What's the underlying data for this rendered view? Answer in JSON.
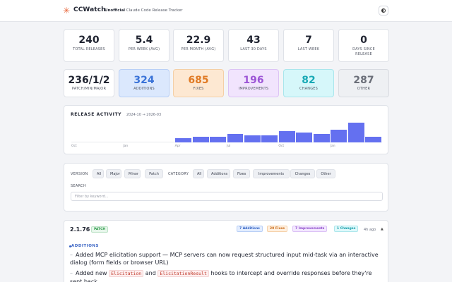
{
  "header": {
    "brand": "CCWatch",
    "subtitle_bold": "Unofficial",
    "subtitle": "Claude Code Release Tracker"
  },
  "stats_row1": [
    {
      "value": "240",
      "label": "TOTAL RELEASES"
    },
    {
      "value": "5.4",
      "label": "PER WEEK (AVG)"
    },
    {
      "value": "22.9",
      "label": "PER MONTH (AVG)"
    },
    {
      "value": "43",
      "label": "LAST 30 DAYS"
    },
    {
      "value": "7",
      "label": "LAST WEEK"
    },
    {
      "value": "0",
      "label": "DAYS SINCE RELEASE"
    }
  ],
  "stats_row2": [
    {
      "value": "236/1/2",
      "label": "PATCH/MIN/MAJOR",
      "color": "#1f2330",
      "bg": "#ffffff",
      "border": "#dfe2e8"
    },
    {
      "value": "324",
      "label": "ADDITIONS",
      "color": "#3a73d8",
      "bg": "#dbe8fd",
      "border": "#b8cff6"
    },
    {
      "value": "685",
      "label": "FIXES",
      "color": "#e07a24",
      "bg": "#fde8d2",
      "border": "#f4cfa6"
    },
    {
      "value": "196",
      "label": "IMPROVEMENTS",
      "color": "#9c55d6",
      "bg": "#f1e4fd",
      "border": "#dcc3f5"
    },
    {
      "value": "82",
      "label": "CHANGES",
      "color": "#18a9b5",
      "bg": "#d6f7fa",
      "border": "#a9e6ec"
    },
    {
      "value": "287",
      "label": "OTHER",
      "color": "#6a6e78",
      "bg": "#eef0f3",
      "border": "#d8dbe1"
    }
  ],
  "activity": {
    "title": "RELEASE ACTIVITY",
    "range": "2024-10 → 2026-03",
    "chart_data": {
      "type": "bar",
      "values": [
        0,
        0,
        0,
        0,
        0,
        0,
        3,
        4,
        4,
        6,
        5,
        5,
        8,
        7,
        6,
        9,
        14,
        4
      ],
      "ticks": [
        "Oct",
        "Jan",
        "Apr",
        "Jul",
        "Oct",
        "Jan"
      ],
      "color": "#6470f0"
    }
  },
  "filters": {
    "version_label": "VERSION",
    "version_options": [
      "All",
      "Major",
      "Minor",
      "Patch"
    ],
    "category_label": "CATEGORY",
    "category_options": [
      "All",
      "Additions",
      "Fixes",
      "Improvements",
      "Changes",
      "Other"
    ],
    "search_label": "SEARCH",
    "search_placeholder": "Filter by keyword..."
  },
  "release": {
    "version": "2.1.76",
    "type_badge": "PATCH",
    "tags": [
      "7 Additions",
      "20 Fixes",
      "7 Improvements",
      "1 Changes"
    ],
    "age": "4h ago",
    "collapse_glyph": "▲",
    "section": "ADDITIONS",
    "item1": "Added MCP elicitation support — MCP servers can now request structured input mid-task via an interactive dialog (form fields or browser URL)",
    "item2_pre": "Added new",
    "item2_code1": "Elicitation",
    "item2_mid": "and",
    "item2_code2": "ElicitationResult",
    "item2_post": "hooks to intercept and override responses before they're sent back"
  }
}
